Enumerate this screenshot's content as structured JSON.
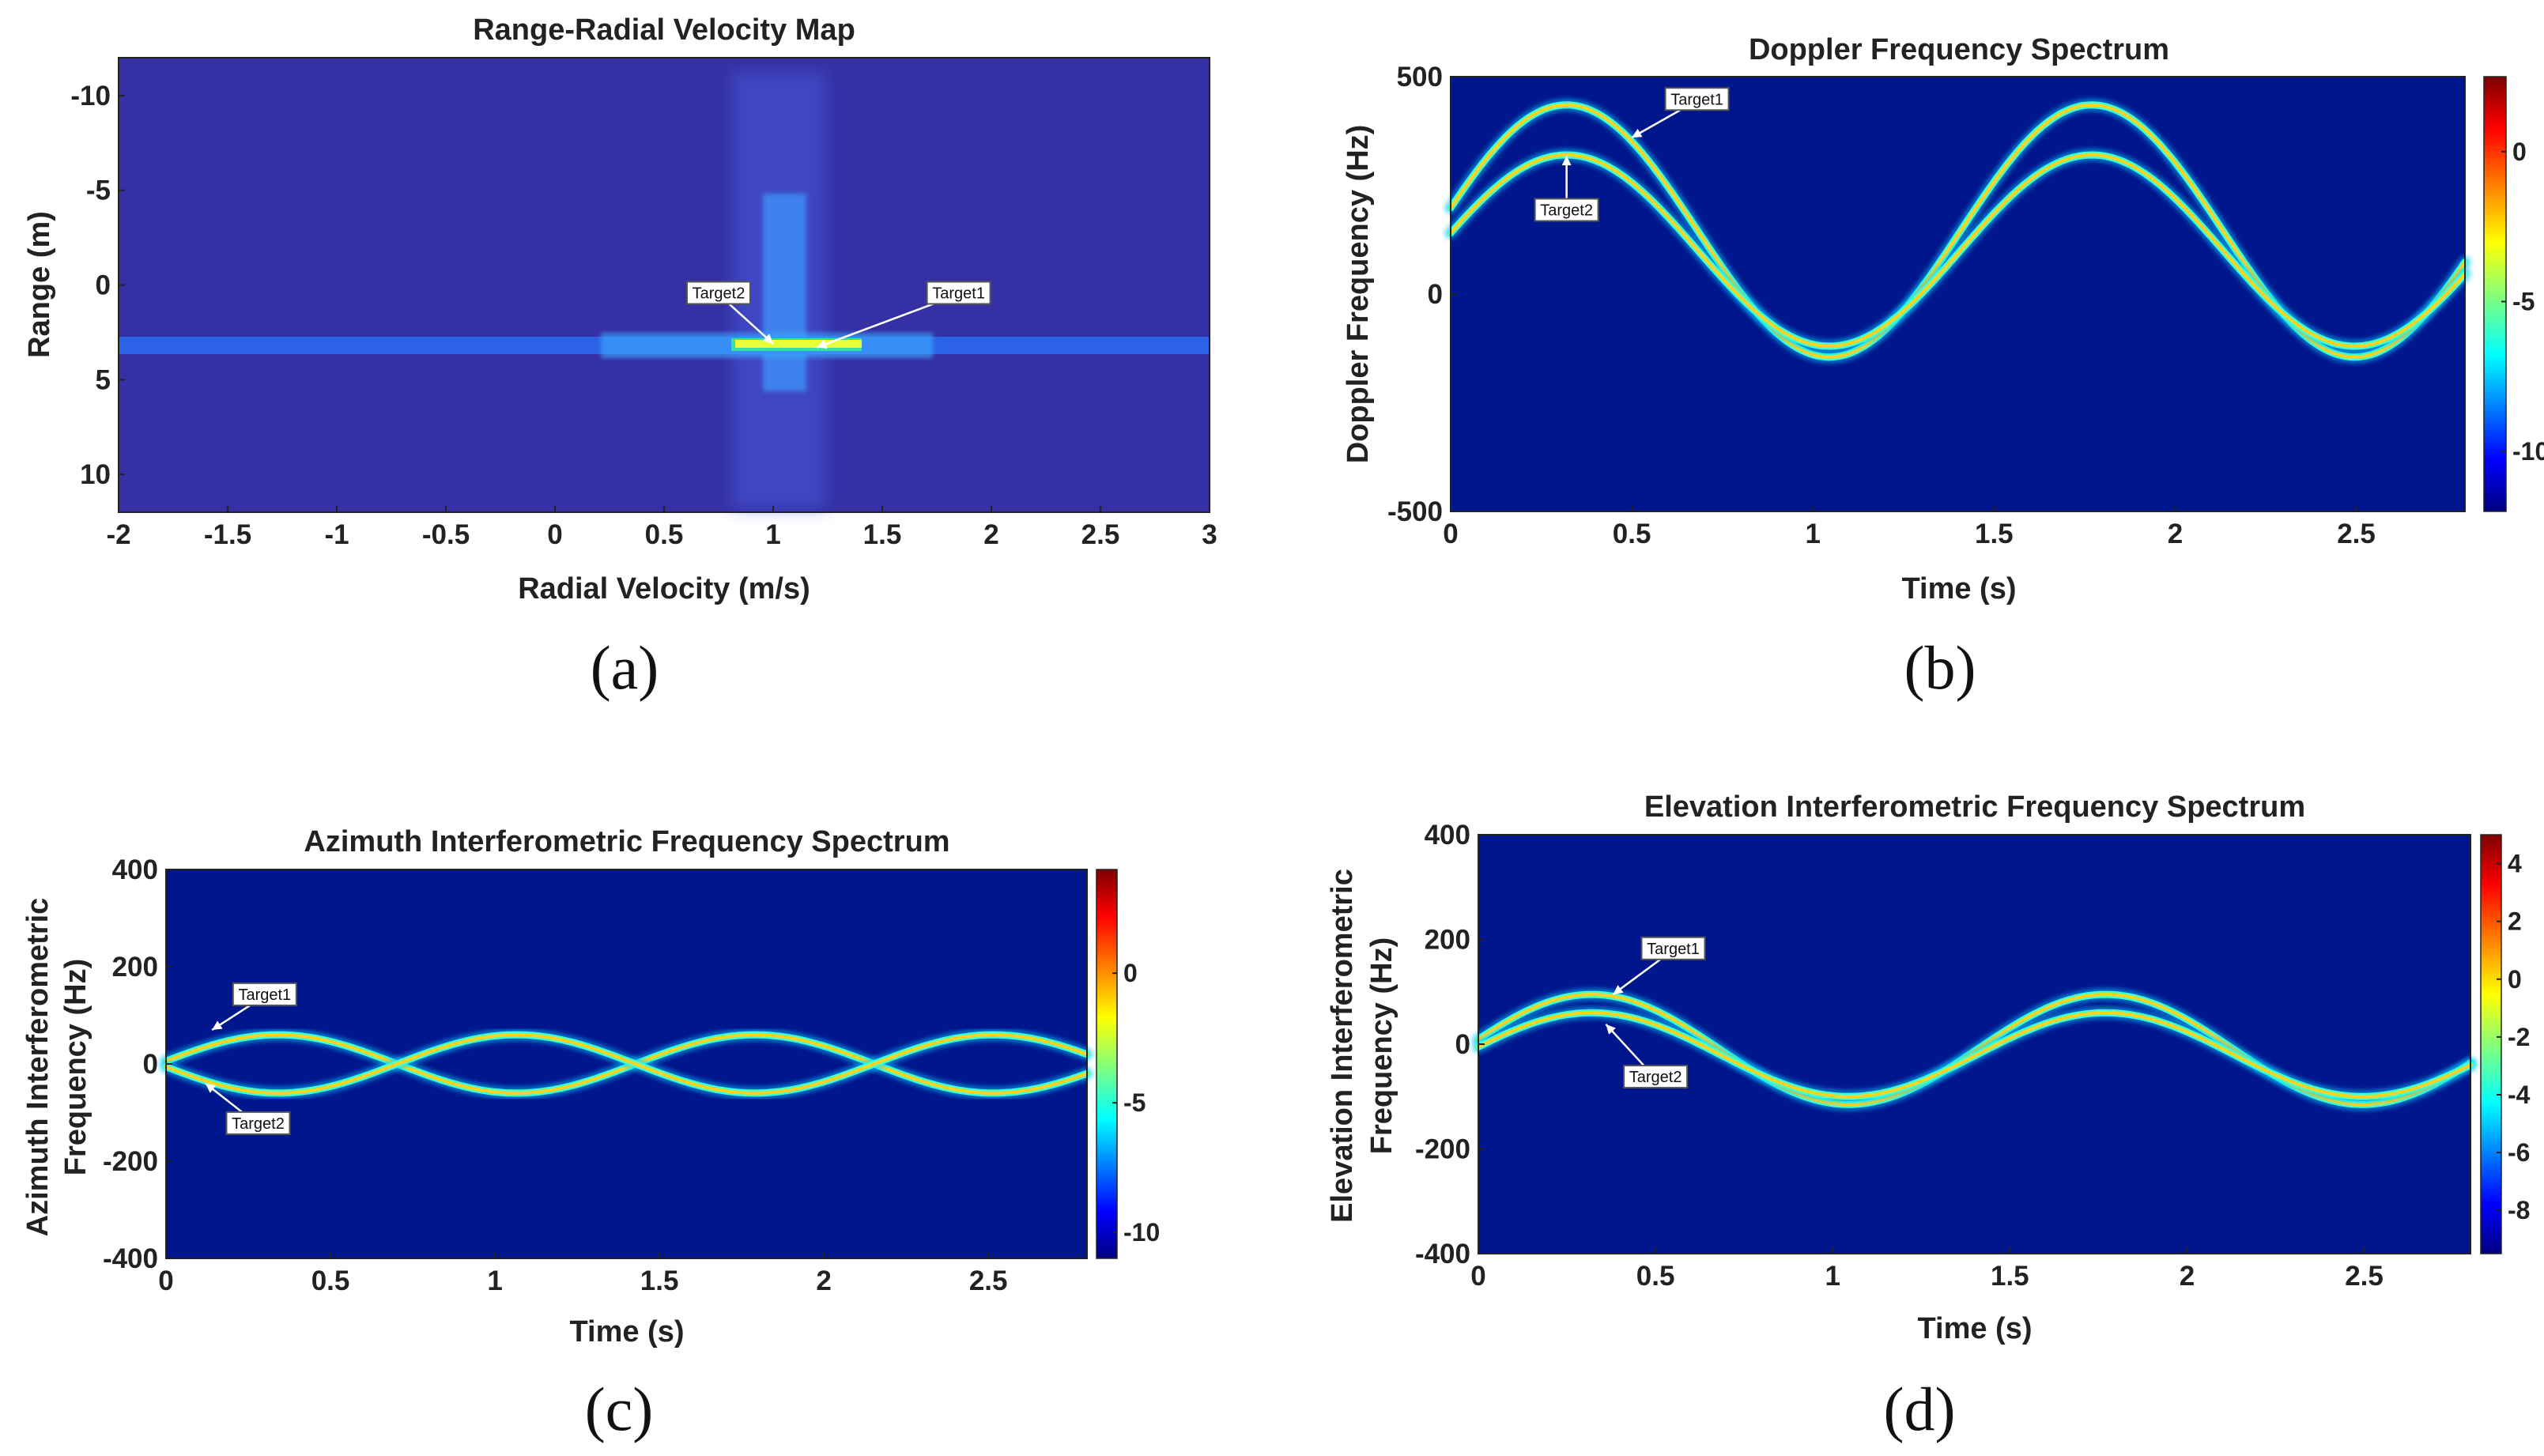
{
  "figure": {
    "labels": [
      "(a)",
      "(b)",
      "(c)",
      "(d)"
    ]
  },
  "colors": {
    "plot_bg": "#00168c",
    "map_bg": "#3530a3",
    "colormap": [
      "#00007f",
      "#0000ff",
      "#00ffff",
      "#ffff00",
      "#ff0000",
      "#7f0000"
    ]
  },
  "chart_data": [
    {
      "id": "a",
      "type": "heatmap",
      "title": "Range-Radial Velocity Map",
      "xlabel": "Radial Velocity (m/s)",
      "ylabel": "Range (m)",
      "xlim": [
        -2,
        3
      ],
      "ylim": [
        -12,
        12
      ],
      "y_reversed": true,
      "xticks": [
        -2,
        -1.5,
        -1,
        -0.5,
        0,
        0.5,
        1,
        1.5,
        2,
        2.5,
        3
      ],
      "xtick_labels": [
        "-2",
        "-1.5",
        "-1",
        "-0.5",
        "0",
        "0.5",
        "1",
        "1.5",
        "2",
        "2.5",
        "3"
      ],
      "yticks": [
        -10,
        -5,
        0,
        5,
        10
      ],
      "ytick_labels": [
        "-10",
        "-5",
        "0",
        "5",
        "10"
      ],
      "range_line": 3.3,
      "targets": [
        {
          "name": "Target1",
          "velocity": 1.2,
          "range": 3.3,
          "label_at": [
            1.85,
            0.5
          ]
        },
        {
          "name": "Target2",
          "velocity": 1.0,
          "range": 3.1,
          "label_at": [
            0.75,
            0.5
          ]
        }
      ]
    },
    {
      "id": "b",
      "type": "heatmap",
      "title": "Doppler Frequency Spectrum",
      "xlabel": "Time (s)",
      "ylabel": "Doppler Frequency (Hz)",
      "xlim": [
        0,
        2.8
      ],
      "ylim": [
        -500,
        500
      ],
      "xticks": [
        0,
        0.5,
        1,
        1.5,
        2,
        2.5
      ],
      "xtick_labels": [
        "0",
        "0.5",
        "1",
        "1.5",
        "2",
        "2.5"
      ],
      "yticks": [
        500,
        0,
        -500
      ],
      "ytick_labels": [
        "500",
        "0",
        "-500"
      ],
      "colorbar": {
        "range": [
          -12,
          2.5
        ],
        "ticks": [
          0,
          -5,
          -10
        ],
        "tick_labels": [
          "0",
          "-5",
          "-10"
        ]
      },
      "series": [
        {
          "name": "Target1",
          "offset": 145,
          "amplitude": 290,
          "period": 1.45,
          "phase": 0.32
        },
        {
          "name": "Target2",
          "offset": 100,
          "amplitude": 220,
          "period": 1.45,
          "phase": 0.32
        }
      ],
      "annotations": [
        {
          "text": "Target1",
          "x": 0.5,
          "y": 360,
          "label_at": [
            0.68,
            445
          ]
        },
        {
          "text": "Target2",
          "x": 0.32,
          "y": 318,
          "label_at": [
            0.32,
            190
          ]
        }
      ]
    },
    {
      "id": "c",
      "type": "heatmap",
      "title": "Azimuth Interferometric Frequency Spectrum",
      "xlabel": "Time (s)",
      "ylabel_lines": [
        "Azimuth Interferometric",
        "Frequency (Hz)"
      ],
      "xlim": [
        0,
        2.8
      ],
      "ylim": [
        -400,
        400
      ],
      "xticks": [
        0,
        0.5,
        1,
        1.5,
        2,
        2.5
      ],
      "xtick_labels": [
        "0",
        "0.5",
        "1",
        "1.5",
        "2",
        "2.5"
      ],
      "yticks": [
        400,
        200,
        0,
        -200,
        -400
      ],
      "ytick_labels": [
        "400",
        "200",
        "0",
        "-200",
        "-400"
      ],
      "colorbar": {
        "range": [
          -11,
          4
        ],
        "ticks": [
          0,
          -5,
          -10
        ],
        "tick_labels": [
          "0",
          "-5",
          "-10"
        ]
      },
      "series": [
        {
          "name": "Target1",
          "offset": 0,
          "amplitude": 60,
          "period": 1.45,
          "phase": 0.34,
          "cos_shape": true
        },
        {
          "name": "Target2",
          "offset": 0,
          "amplitude": -60,
          "period": 1.45,
          "phase": 0.34,
          "cos_shape": true
        }
      ],
      "annotations": [
        {
          "text": "Target1",
          "x": 0.14,
          "y": 70,
          "label_at": [
            0.3,
            140
          ]
        },
        {
          "text": "Target2",
          "x": 0.12,
          "y": -40,
          "label_at": [
            0.28,
            -125
          ]
        }
      ]
    },
    {
      "id": "d",
      "type": "heatmap",
      "title": "Elevation Interferometric Frequency Spectrum",
      "xlabel": "Time (s)",
      "ylabel_lines": [
        "Elevation Interferometric",
        "Frequency (Hz)"
      ],
      "xlim": [
        0,
        2.8
      ],
      "ylim": [
        -400,
        400
      ],
      "xticks": [
        0,
        0.5,
        1,
        1.5,
        2,
        2.5
      ],
      "xtick_labels": [
        "0",
        "0.5",
        "1",
        "1.5",
        "2",
        "2.5"
      ],
      "yticks": [
        400,
        200,
        0,
        -200,
        -400
      ],
      "ytick_labels": [
        "400",
        "200",
        "0",
        "-200",
        "-400"
      ],
      "colorbar": {
        "range": [
          -9.5,
          5
        ],
        "ticks": [
          4,
          2,
          0,
          -2,
          -4,
          -6,
          -8
        ],
        "tick_labels": [
          "4",
          "2",
          "0",
          "-2",
          "-4",
          "-6",
          "-8"
        ]
      },
      "series": [
        {
          "name": "Target1",
          "offset": -10,
          "amplitude": 105,
          "period": 1.45,
          "phase": 0.32
        },
        {
          "name": "Target2",
          "offset": -20,
          "amplitude": 80,
          "period": 1.45,
          "phase": 0.32
        }
      ],
      "annotations": [
        {
          "text": "Target1",
          "x": 0.38,
          "y": 95,
          "label_at": [
            0.55,
            180
          ]
        },
        {
          "text": "Target2",
          "x": 0.36,
          "y": 38,
          "label_at": [
            0.5,
            -65
          ]
        }
      ]
    }
  ]
}
